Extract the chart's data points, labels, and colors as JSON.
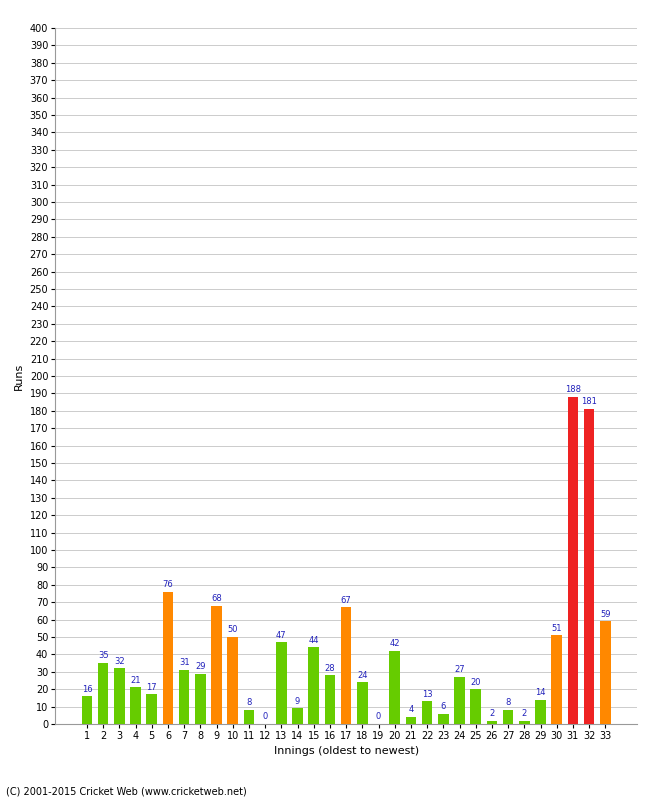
{
  "xlabel": "Innings (oldest to newest)",
  "ylabel": "Runs",
  "footer": "(C) 2001-2015 Cricket Web (www.cricketweb.net)",
  "ylim": [
    0,
    400
  ],
  "yticks": [
    0,
    10,
    20,
    30,
    40,
    50,
    60,
    70,
    80,
    90,
    100,
    110,
    120,
    130,
    140,
    150,
    160,
    170,
    180,
    190,
    200,
    210,
    220,
    230,
    240,
    250,
    260,
    270,
    280,
    290,
    300,
    310,
    320,
    330,
    340,
    350,
    360,
    370,
    380,
    390,
    400
  ],
  "innings": [
    1,
    2,
    3,
    4,
    5,
    6,
    7,
    8,
    9,
    10,
    11,
    12,
    13,
    14,
    15,
    16,
    17,
    18,
    19,
    20,
    21,
    22,
    23,
    24,
    25,
    26,
    27,
    28,
    29,
    30,
    31,
    32,
    33
  ],
  "values": [
    16,
    35,
    32,
    21,
    17,
    76,
    31,
    29,
    68,
    50,
    8,
    0,
    47,
    9,
    44,
    28,
    67,
    24,
    0,
    42,
    4,
    13,
    6,
    27,
    20,
    2,
    8,
    2,
    14,
    51,
    188,
    181,
    59
  ],
  "colors": [
    "green",
    "green",
    "green",
    "green",
    "green",
    "orange",
    "green",
    "green",
    "orange",
    "orange",
    "green",
    "orange",
    "green",
    "green",
    "green",
    "green",
    "orange",
    "green",
    "orange",
    "green",
    "green",
    "green",
    "green",
    "green",
    "green",
    "green",
    "green",
    "green",
    "green",
    "orange",
    "red",
    "red",
    "orange"
  ],
  "bar_color_green": "#66cc00",
  "bar_color_orange": "#ff8800",
  "bar_color_red": "#ee2222",
  "label_color": "#2222bb",
  "background_color": "#ffffff",
  "grid_color": "#cccccc"
}
